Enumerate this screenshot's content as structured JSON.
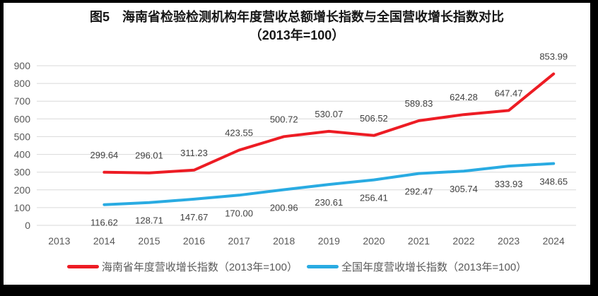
{
  "page": {
    "border_color": "#000000",
    "panel_background": "#ffffff"
  },
  "chart_data": {
    "type": "line",
    "title": "图5　海南省检验检测机构年度营收总额增长指数与全国营收增长指数对比",
    "subtitle": "（2013年=100）",
    "categories": [
      "2013",
      "2014",
      "2015",
      "2016",
      "2017",
      "2018",
      "2019",
      "2020",
      "2021",
      "2022",
      "2023",
      "2024"
    ],
    "series": [
      {
        "name": "海南省年度营收增长指数（2013年=100）",
        "color": "#ED1C24",
        "label_position": "above",
        "values": [
          null,
          299.64,
          296.01,
          311.23,
          423.55,
          500.72,
          530.07,
          506.52,
          589.83,
          624.28,
          647.47,
          853.99
        ]
      },
      {
        "name": "全国年度营收增长指数（2013年=100）",
        "color": "#29ABE2",
        "label_position": "below",
        "values": [
          null,
          116.62,
          128.71,
          147.67,
          170.0,
          200.96,
          230.61,
          256.41,
          292.47,
          305.74,
          333.93,
          348.65
        ]
      }
    ],
    "ylim": [
      0,
      900
    ],
    "ytick_step": 100,
    "grid": true,
    "legend_position": "bottom",
    "axis_color": "#595959",
    "grid_color": "#D9D9D9",
    "data_label_color": "#404040",
    "value_decimals": 2
  }
}
